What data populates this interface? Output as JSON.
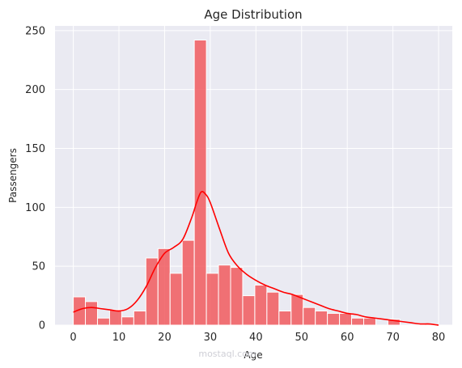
{
  "chart_data": {
    "type": "bar",
    "title": "Age Distribution",
    "xlabel": "Age",
    "ylabel": "Passengers",
    "xlim": [
      -4.0,
      83.0
    ],
    "ylim": [
      0,
      254
    ],
    "xticks": [
      0,
      10,
      20,
      30,
      40,
      50,
      60,
      70,
      80
    ],
    "yticks": [
      0,
      50,
      100,
      150,
      200,
      250
    ],
    "grid": true,
    "bin_width": 2.65,
    "series": [
      {
        "kind": "histogram",
        "color": "#f15b5e",
        "bins_start": 0,
        "values": [
          24,
          20,
          6,
          13,
          7,
          12,
          57,
          65,
          44,
          72,
          242,
          44,
          51,
          49,
          25,
          34,
          28,
          12,
          26,
          15,
          12,
          10,
          10,
          6,
          6,
          0,
          5,
          0,
          0,
          1
        ]
      },
      {
        "kind": "kde",
        "color": "#ff0000",
        "x": [
          0,
          2,
          4,
          6,
          8,
          10,
          12,
          14,
          16,
          18,
          20,
          22,
          24,
          26,
          27,
          28,
          29,
          30,
          32,
          34,
          36,
          38,
          40,
          42,
          44,
          46,
          48,
          50,
          52,
          54,
          56,
          58,
          60,
          62,
          64,
          66,
          68,
          70,
          72,
          74,
          76,
          78,
          80
        ],
        "y": [
          11,
          14,
          15,
          14,
          13,
          12,
          14,
          21,
          33,
          49,
          61,
          66,
          73,
          92,
          104,
          113,
          111,
          104,
          82,
          61,
          50,
          43,
          38,
          34,
          31,
          28,
          26,
          23,
          20,
          17,
          14,
          12,
          10,
          9,
          7,
          6,
          5,
          4,
          3,
          2,
          1,
          1,
          0
        ]
      }
    ]
  },
  "watermark": {
    "text": "mostaql.com"
  }
}
